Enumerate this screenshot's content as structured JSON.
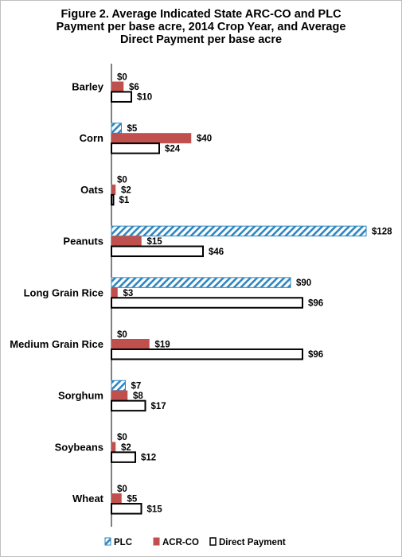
{
  "title_lines": [
    "Figure 2.  Average Indicated State ARC-CO and PLC",
    "Payment per base acre, 2014 Crop Year, and Average",
    "Direct Payment per base acre"
  ],
  "colors": {
    "plc_stroke": "#2e86c1",
    "arc_co_fill": "#c0504d",
    "direct_fill": "#ffffff",
    "direct_stroke": "#000000"
  },
  "chart_data": {
    "type": "bar",
    "orientation": "horizontal",
    "title": "Figure 2.  Average Indicated State ARC-CO and PLC Payment per base acre, 2014 Crop Year, and Average Direct Payment per base acre",
    "categories": [
      "Barley",
      "Corn",
      "Oats",
      "Peanuts",
      "Long Grain Rice",
      "Medium Grain Rice",
      "Sorghum",
      "Soybeans",
      "Wheat"
    ],
    "series": [
      {
        "name": "PLC",
        "values": [
          0,
          5,
          0,
          128,
          90,
          0,
          7,
          0,
          0
        ],
        "labels": [
          "$0",
          "$5",
          "$0",
          "$128",
          "$90",
          "$0",
          "$7",
          "$0",
          "$0"
        ]
      },
      {
        "name": "ACR-CO",
        "values": [
          6,
          40,
          2,
          15,
          3,
          19,
          8,
          2,
          5
        ],
        "labels": [
          "$6",
          "$40",
          "$2",
          "$15",
          "$3",
          "$19",
          "$8",
          "$2",
          "$5"
        ]
      },
      {
        "name": "Direct Payment",
        "values": [
          10,
          24,
          1,
          46,
          96,
          96,
          17,
          12,
          15
        ],
        "labels": [
          "$10",
          "$24",
          "$1",
          "$46",
          "$96",
          "$96",
          "$17",
          "$12",
          "$15"
        ]
      }
    ],
    "xlim": [
      0,
      128
    ],
    "xlabel": "",
    "ylabel": "",
    "grid": false,
    "legend_position": "bottom"
  }
}
